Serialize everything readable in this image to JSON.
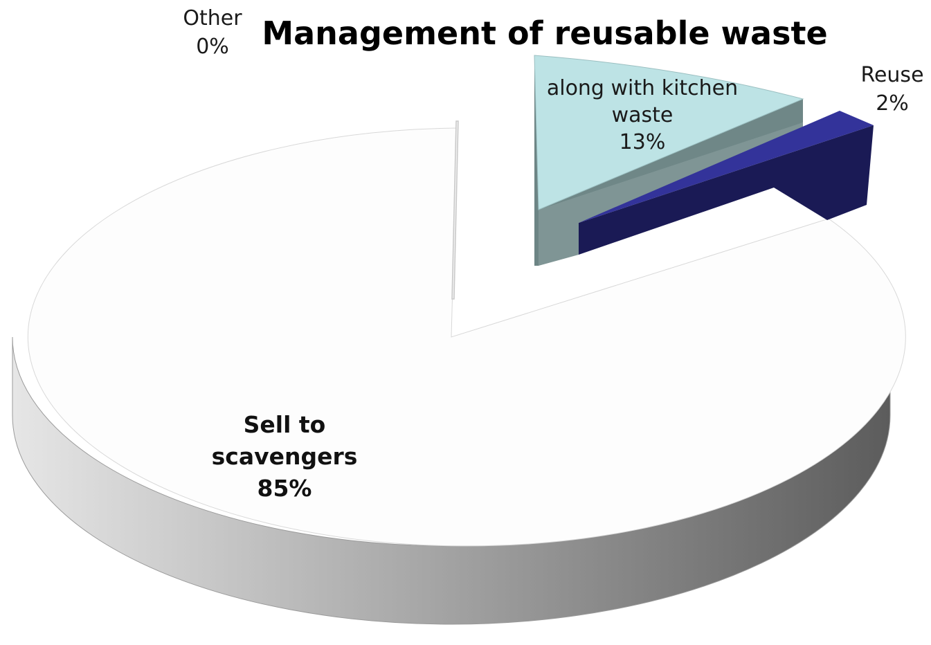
{
  "chart_data": {
    "type": "pie",
    "style": "3d-exploded",
    "title": "Management of reusable waste",
    "slices": [
      {
        "label_lines": [
          "Other"
        ],
        "value": 0,
        "value_label": "0%",
        "color": "#f4f4f4"
      },
      {
        "label_lines": [
          "along with kitchen",
          "waste"
        ],
        "value": 13,
        "value_label": "13%",
        "color": "#bde3e5",
        "side_color": "#6f8787"
      },
      {
        "label_lines": [
          "Reuse"
        ],
        "value": 2,
        "value_label": "2%",
        "color": "#33339a",
        "side_color": "#1a1a55"
      },
      {
        "label_lines": [
          "Sell to",
          "scavengers"
        ],
        "value": 85,
        "value_label": "85%",
        "color": "#fdfdfd",
        "side_color": "#8a8a8a"
      }
    ]
  }
}
